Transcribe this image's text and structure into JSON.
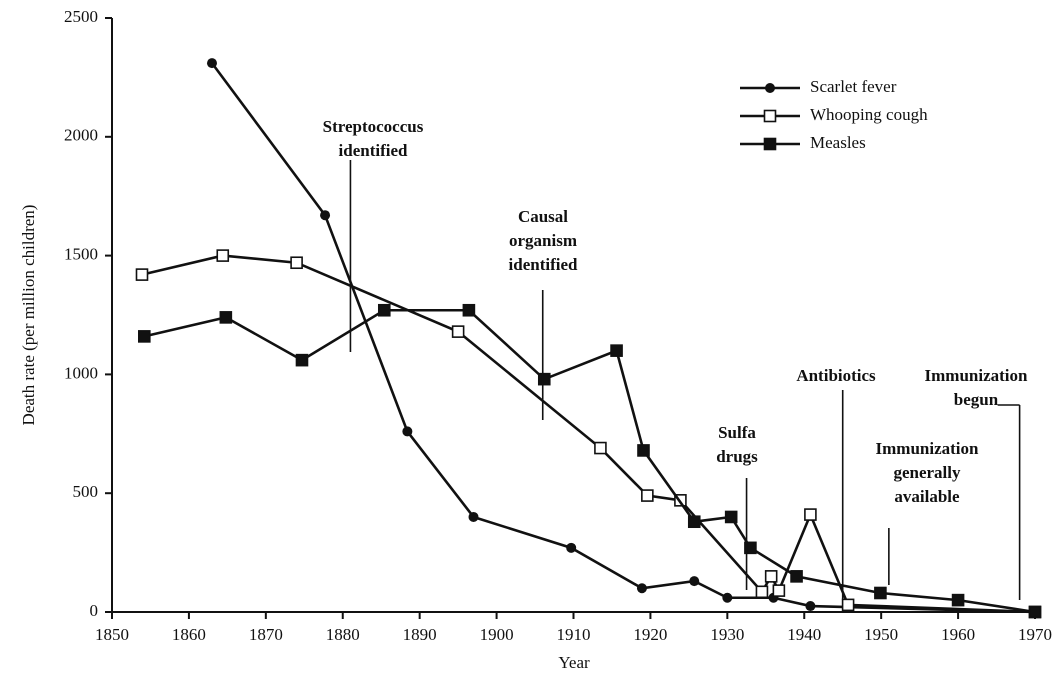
{
  "chart_data": {
    "type": "line",
    "y_label": "Death rate (per million children)",
    "x_label": "Year",
    "xlim": [
      1850,
      1970
    ],
    "xticks": [
      1850,
      1860,
      1870,
      1880,
      1890,
      1900,
      1910,
      1920,
      1930,
      1940,
      1950,
      1960,
      1970
    ],
    "ylim": [
      0,
      2500
    ],
    "yticks": [
      0,
      500,
      1000,
      1500,
      2000,
      2500
    ],
    "legend": "top-right",
    "series": [
      {
        "name": "Scarlet fever",
        "color": "#111111",
        "marker": "circle",
        "x": [
          1863,
          1877.7,
          1888.4,
          1897,
          1909.7,
          1918.9,
          1925.7,
          1930,
          1936,
          1940.8,
          1970
        ],
        "values": [
          2310,
          1670,
          760,
          400,
          270,
          100,
          130,
          60,
          60,
          25,
          0
        ]
      },
      {
        "name": "Whooping cough",
        "color": "#111111",
        "marker": "open-square",
        "x": [
          1853.9,
          1864.4,
          1874,
          1895,
          1913.5,
          1919.6,
          1923.9,
          1934.5,
          1935.7,
          1936.7,
          1940.8,
          1945.7,
          1970
        ],
        "values": [
          1420,
          1500,
          1470,
          1180,
          690,
          490,
          470,
          85,
          150,
          90,
          410,
          30,
          0
        ]
      },
      {
        "name": "Measles",
        "color": "#111111",
        "marker": "square",
        "x": [
          1854.2,
          1864.8,
          1874.7,
          1885.4,
          1896.4,
          1906.2,
          1915.6,
          1919.1,
          1925.7,
          1930.5,
          1933,
          1939,
          1949.9,
          1960,
          1970
        ],
        "values": [
          1160,
          1240,
          1060,
          1270,
          1270,
          980,
          1100,
          680,
          380,
          400,
          270,
          150,
          80,
          50,
          0
        ]
      }
    ],
    "annotations": [
      {
        "text": [
          "Streptococcus",
          "identified"
        ],
        "x": 1881
      },
      {
        "text": [
          "Causal",
          "organism",
          "identified"
        ],
        "x": 1906
      },
      {
        "text": [
          "Sulfa",
          "drugs"
        ],
        "x": 1932.5
      },
      {
        "text": [
          "Antibiotics"
        ],
        "x": 1945
      },
      {
        "text": [
          "Immunization",
          "generally",
          "available"
        ],
        "x": 1951
      },
      {
        "text": [
          "Immunization",
          "begun"
        ],
        "x": 1968
      }
    ]
  }
}
